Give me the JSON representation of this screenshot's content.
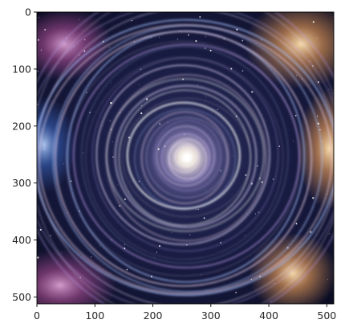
{
  "figure": {
    "kind": "image-with-axes",
    "image_subject": "cosmic-spiral-vortex",
    "colors": {
      "background": "#0e1230",
      "center_glow": "#ffffff",
      "rings": "#e8dcff",
      "nebula_orange": "#f2a25a",
      "nebula_pink": "#c85aa8",
      "nebula_blue": "#3e6fd0"
    },
    "x_axis": {
      "range": [
        0,
        512
      ],
      "ticks": [
        {
          "value": 0,
          "label": "0"
        },
        {
          "value": 100,
          "label": "100"
        },
        {
          "value": 200,
          "label": "200"
        },
        {
          "value": 300,
          "label": "300"
        },
        {
          "value": 400,
          "label": "400"
        },
        {
          "value": 500,
          "label": "500"
        }
      ]
    },
    "y_axis": {
      "range": [
        0,
        512
      ],
      "inverted": true,
      "ticks": [
        {
          "value": 0,
          "label": "0"
        },
        {
          "value": 100,
          "label": "100"
        },
        {
          "value": 200,
          "label": "200"
        },
        {
          "value": 300,
          "label": "300"
        },
        {
          "value": 400,
          "label": "400"
        },
        {
          "value": 500,
          "label": "500"
        }
      ]
    }
  }
}
